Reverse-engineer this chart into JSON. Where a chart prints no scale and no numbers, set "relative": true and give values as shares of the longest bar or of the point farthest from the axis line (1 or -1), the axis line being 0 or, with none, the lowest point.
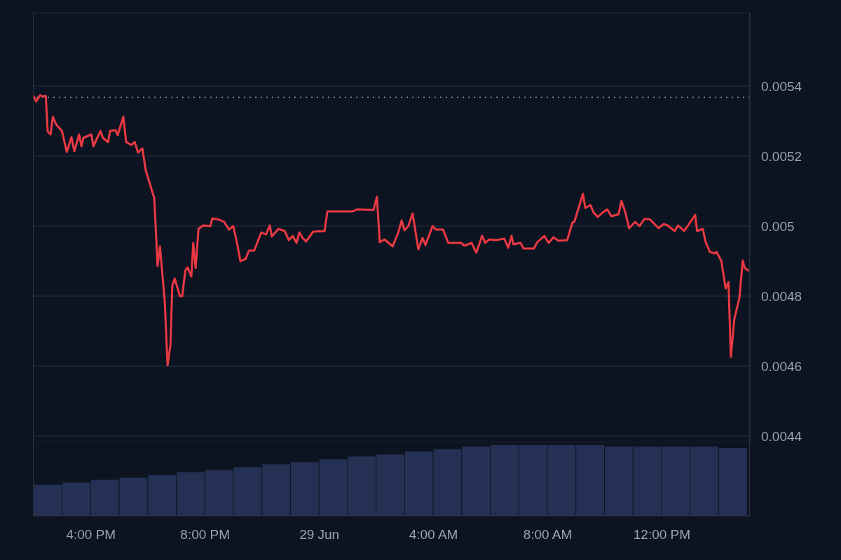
{
  "chart_data": [
    {
      "type": "line",
      "xlim": [
        "--06-28T13:58",
        "--06-29T15:05"
      ],
      "ylim": [
        0.004382,
        0.00561
      ],
      "xticks": [
        {
          "value": "--06-28T16:00",
          "label": "4:00 PM"
        },
        {
          "value": "--06-28T20:00",
          "label": "8:00 PM"
        },
        {
          "value": "--06-29T00:00",
          "label": "29 Jun"
        },
        {
          "value": "--06-29T04:00",
          "label": "4:00 AM"
        },
        {
          "value": "--06-29T08:00",
          "label": "8:00 AM"
        },
        {
          "value": "--06-29T12:00",
          "label": "12:00 PM"
        }
      ],
      "yticks": [
        0.0044,
        0.0046,
        0.0048,
        0.005,
        0.0052,
        0.0054
      ],
      "tick_labels": "y",
      "grid": "y",
      "marker": "none",
      "line_style": "solid",
      "ref_lines": [
        {
          "axis": "y",
          "value": 0.005368,
          "color": "#9aa3b2",
          "line_style": "dotted"
        }
      ],
      "series": [
        {
          "color": "#ea3943",
          "x": [
            "--06-28T13:59",
            "--06-28T14:05",
            "--06-28T14:13",
            "--06-28T14:19",
            "--06-28T14:25",
            "--06-28T14:29",
            "--06-28T14:35",
            "--06-28T14:40",
            "--06-28T14:47",
            "--06-28T14:59",
            "--06-28T15:09",
            "--06-28T15:19",
            "--06-28T15:25",
            "--06-28T15:35",
            "--06-28T15:40",
            "--06-28T15:44",
            "--06-28T16:01",
            "--06-28T16:05",
            "--06-28T16:20",
            "--06-28T16:25",
            "--06-28T16:36",
            "--06-28T16:40",
            "--06-28T16:52",
            "--06-28T16:56",
            "--06-28T17:08",
            "--06-28T17:14",
            "--06-28T17:25",
            "--06-28T17:32",
            "--06-28T17:39",
            "--06-28T17:48",
            "--06-28T17:55",
            "--06-28T18:13",
            "--06-28T18:20",
            "--06-28T18:25",
            "--06-28T18:35",
            "--06-28T18:41",
            "--06-28T18:47",
            "--06-28T18:51",
            "--06-28T18:56",
            "--06-28T19:07",
            "--06-28T19:12",
            "--06-28T19:18",
            "--06-28T19:23",
            "--06-28T19:31",
            "--06-28T19:35",
            "--06-28T19:40",
            "--06-28T19:46",
            "--06-28T19:56",
            "--06-28T20:11",
            "--06-28T20:15",
            "--06-28T20:30",
            "--06-28T20:40",
            "--06-28T20:50",
            "--06-28T20:59",
            "--06-28T21:07",
            "--06-28T21:14",
            "--06-28T21:25",
            "--06-28T21:32",
            "--06-28T21:43",
            "--06-28T21:58",
            "--06-28T22:08",
            "--06-28T22:16",
            "--06-28T22:20",
            "--06-28T22:34",
            "--06-28T22:47",
            "--06-28T22:56",
            "--06-28T23:04",
            "--06-28T23:12",
            "--06-28T23:18",
            "--06-28T23:25",
            "--06-28T23:32",
            "--06-28T23:47",
            "--06-29T00:11",
            "--06-29T00:17",
            "--06-29T01:10",
            "--06-29T01:20",
            "--06-29T01:54",
            "--06-29T02:01",
            "--06-29T02:07",
            "--06-29T02:17",
            "--06-29T02:34",
            "--06-29T02:46",
            "--06-29T02:53",
            "--06-29T02:59",
            "--06-29T03:07",
            "--06-29T03:16",
            "--06-29T03:28",
            "--06-29T03:37",
            "--06-29T03:43",
            "--06-29T03:58",
            "--06-29T04:05",
            "--06-29T04:20",
            "--06-29T04:31",
            "--06-29T04:58",
            "--06-29T05:05",
            "--06-29T05:20",
            "--06-29T05:30",
            "--06-29T05:42",
            "--06-29T05:49",
            "--06-29T05:57",
            "--06-29T06:11",
            "--06-29T06:29",
            "--06-29T06:37",
            "--06-29T06:44",
            "--06-29T06:48",
            "--06-29T07:03",
            "--06-29T07:09",
            "--06-29T07:31",
            "--06-29T07:38",
            "--06-29T07:53",
            "--06-29T08:02",
            "--06-29T08:12",
            "--06-29T08:23",
            "--06-29T08:41",
            "--06-29T08:52",
            "--06-29T08:56",
            "--06-29T09:14",
            "--06-29T09:19",
            "--06-29T09:30",
            "--06-29T09:36",
            "--06-29T09:45",
            "--06-29T09:55",
            "--06-29T10:05",
            "--06-29T10:14",
            "--06-29T10:29",
            "--06-29T10:35",
            "--06-29T10:43",
            "--06-29T10:51",
            "--06-29T11:04",
            "--06-29T11:13",
            "--06-29T11:23",
            "--06-29T11:34",
            "--06-29T11:49",
            "--06-29T11:53",
            "--06-29T12:04",
            "--06-29T12:12",
            "--06-29T12:27",
            "--06-29T12:34",
            "--06-29T12:47",
            "--06-29T13:10",
            "--06-29T13:14",
            "--06-29T13:26",
            "--06-29T13:32",
            "--06-29T13:41",
            "--06-29T13:51",
            "--06-29T13:55",
            "--06-29T14:05",
            "--06-29T14:14",
            "--06-29T14:20",
            "--06-29T14:25",
            "--06-29T14:32",
            "--06-29T14:43",
            "--06-29T14:50",
            "--06-29T14:54",
            "--06-29T15:03"
          ],
          "values": [
            0.005372,
            0.005356,
            0.005374,
            0.00537,
            0.005372,
            0.00527,
            0.005262,
            0.005312,
            0.00529,
            0.005272,
            0.005212,
            0.005254,
            0.005214,
            0.005262,
            0.005228,
            0.005252,
            0.005262,
            0.005228,
            0.005272,
            0.005252,
            0.00524,
            0.005272,
            0.005274,
            0.00526,
            0.005312,
            0.00524,
            0.005232,
            0.00524,
            0.00521,
            0.005222,
            0.00516,
            0.00508,
            0.004886,
            0.004942,
            0.004786,
            0.004602,
            0.00466,
            0.00483,
            0.00485,
            0.0048,
            0.0048,
            0.004872,
            0.004882,
            0.004856,
            0.004952,
            0.00488,
            0.004992,
            0.005002,
            0.005,
            0.005022,
            0.005018,
            0.005012,
            0.00499,
            0.005,
            0.004952,
            0.0049,
            0.004906,
            0.00493,
            0.00493,
            0.004982,
            0.004976,
            0.005002,
            0.00497,
            0.004992,
            0.004986,
            0.00496,
            0.004972,
            0.004952,
            0.004982,
            0.004966,
            0.004956,
            0.004984,
            0.004986,
            0.005042,
            0.005042,
            0.005048,
            0.005046,
            0.005084,
            0.004954,
            0.004962,
            0.004942,
            0.004982,
            0.005016,
            0.004988,
            0.005,
            0.005036,
            0.004934,
            0.004966,
            0.004946,
            0.005,
            0.00499,
            0.00499,
            0.004952,
            0.004952,
            0.004944,
            0.004952,
            0.004924,
            0.004972,
            0.004952,
            0.004962,
            0.00496,
            0.004964,
            0.004938,
            0.004972,
            0.004948,
            0.004952,
            0.004936,
            0.004936,
            0.004954,
            0.004972,
            0.004952,
            0.004968,
            0.004958,
            0.00496,
            0.00501,
            0.005012,
            0.005092,
            0.005052,
            0.00506,
            0.00504,
            0.005026,
            0.005038,
            0.005048,
            0.005028,
            0.005034,
            0.005072,
            0.00504,
            0.004994,
            0.005012,
            0.005,
            0.00502,
            0.00502,
            0.005,
            0.004994,
            0.005006,
            0.005002,
            0.004986,
            0.005002,
            0.004986,
            0.005032,
            0.004986,
            0.004992,
            0.004954,
            0.004926,
            0.004922,
            0.004926,
            0.0049,
            0.004822,
            0.00484,
            0.004626,
            0.004732,
            0.004796,
            0.004902,
            0.00488,
            0.004872
          ]
        }
      ]
    },
    {
      "type": "bar",
      "relative": true,
      "color": "#243154",
      "xlim": [
        "--06-28T13:58",
        "--06-29T15:05"
      ],
      "xticks": [
        {
          "value": "--06-28T16:00",
          "label": "4:00 PM"
        },
        {
          "value": "--06-28T20:00",
          "label": "8:00 PM"
        },
        {
          "value": "--06-29T00:00",
          "label": "29 Jun"
        },
        {
          "value": "--06-29T04:00",
          "label": "4:00 AM"
        },
        {
          "value": "--06-29T08:00",
          "label": "8:00 AM"
        },
        {
          "value": "--06-29T12:00",
          "label": "12:00 PM"
        }
      ],
      "tick_labels": "x",
      "x": [
        "--06-28T14:30",
        "--06-28T15:30",
        "--06-28T16:30",
        "--06-28T17:30",
        "--06-28T18:30",
        "--06-28T19:30",
        "--06-28T20:30",
        "--06-28T21:30",
        "--06-28T22:30",
        "--06-28T23:30",
        "--06-29T00:30",
        "--06-29T01:30",
        "--06-29T02:30",
        "--06-29T03:30",
        "--06-29T04:30",
        "--06-29T05:30",
        "--06-29T06:30",
        "--06-29T07:30",
        "--06-29T08:30",
        "--06-29T09:30",
        "--06-29T10:30",
        "--06-29T11:30",
        "--06-29T12:30",
        "--06-29T13:30",
        "--06-29T14:30"
      ],
      "values": [
        0.44,
        0.47,
        0.51,
        0.54,
        0.58,
        0.62,
        0.65,
        0.69,
        0.73,
        0.76,
        0.8,
        0.84,
        0.87,
        0.91,
        0.94,
        0.98,
        1,
        1,
        1,
        1,
        0.98,
        0.98,
        0.98,
        0.98,
        0.96
      ]
    }
  ]
}
